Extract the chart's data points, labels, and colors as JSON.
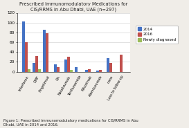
{
  "title": "Prescribed Immunomodulatory Medications for\nCIS/RRMS in Abu Dhabi, UAE (n=297)",
  "categories": [
    "Interferon",
    "DMF",
    "Fingolimod",
    "GA",
    "Natalizumab",
    "Teriflunomide",
    "Rituximab",
    "Alemtuzumab",
    "none",
    "Loss to follow up"
  ],
  "values_2014": [
    102,
    18,
    85,
    15,
    25,
    10,
    3,
    2,
    27,
    0
  ],
  "values_2016": [
    60,
    32,
    79,
    9,
    30,
    0,
    5,
    3,
    18,
    35
  ],
  "values_newly": [
    5,
    5,
    0,
    0,
    3,
    0,
    0,
    0,
    0,
    0
  ],
  "color_2014": "#4472C4",
  "color_2016": "#C0504D",
  "color_newly": "#9BBB59",
  "ylim": [
    0,
    120
  ],
  "yticks": [
    0,
    20,
    40,
    60,
    80,
    100,
    120
  ],
  "legend_labels": [
    "2014",
    "2016",
    "Newly diagnosed"
  ],
  "figure_caption": "Figure 1: Prescribed immunomodulatory medications for CIS/RRMS in Abu\nDhabi, UAE in 2014 and 2016.",
  "background_color": "#f0ede8",
  "plot_bg": "#ffffff"
}
